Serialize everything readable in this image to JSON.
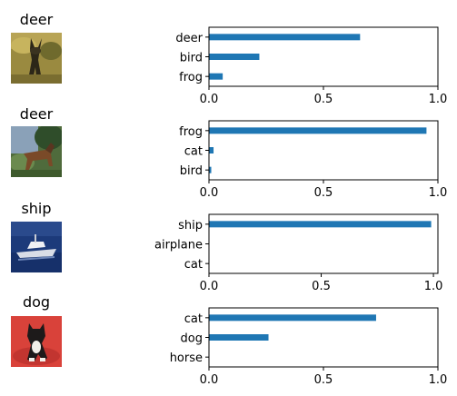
{
  "colors": {
    "bar": "#1f77b4"
  },
  "panels": [
    {
      "title": "deer",
      "image_icon": "deer-photo-thumbnail",
      "chart_data": {
        "type": "bar",
        "orientation": "horizontal",
        "categories": [
          "deer",
          "bird",
          "frog"
        ],
        "values": [
          0.66,
          0.22,
          0.06
        ],
        "xlim": [
          0,
          1
        ],
        "xticks": [
          "0.0",
          "0.5",
          "1.0"
        ]
      }
    },
    {
      "title": "deer",
      "image_icon": "deer-photo-thumbnail",
      "chart_data": {
        "type": "bar",
        "orientation": "horizontal",
        "categories": [
          "frog",
          "cat",
          "bird"
        ],
        "values": [
          0.95,
          0.02,
          0.01
        ],
        "xlim": [
          0,
          1
        ],
        "xticks": [
          "0.0",
          "0.5",
          "1.0"
        ]
      }
    },
    {
      "title": "ship",
      "image_icon": "ship-photo-thumbnail",
      "chart_data": {
        "type": "bar",
        "orientation": "horizontal",
        "categories": [
          "ship",
          "airplane",
          "cat"
        ],
        "values": [
          0.99,
          0.0,
          0.0
        ],
        "xlim": [
          0,
          1.02
        ],
        "xticks": [
          "0.0",
          "0.5",
          "1.0"
        ]
      }
    },
    {
      "title": "dog",
      "image_icon": "dog-photo-thumbnail",
      "chart_data": {
        "type": "bar",
        "orientation": "horizontal",
        "categories": [
          "cat",
          "dog",
          "horse"
        ],
        "values": [
          0.73,
          0.26,
          0.0
        ],
        "xlim": [
          0,
          1
        ],
        "xticks": [
          "0.0",
          "0.5",
          "1.0"
        ]
      }
    }
  ]
}
